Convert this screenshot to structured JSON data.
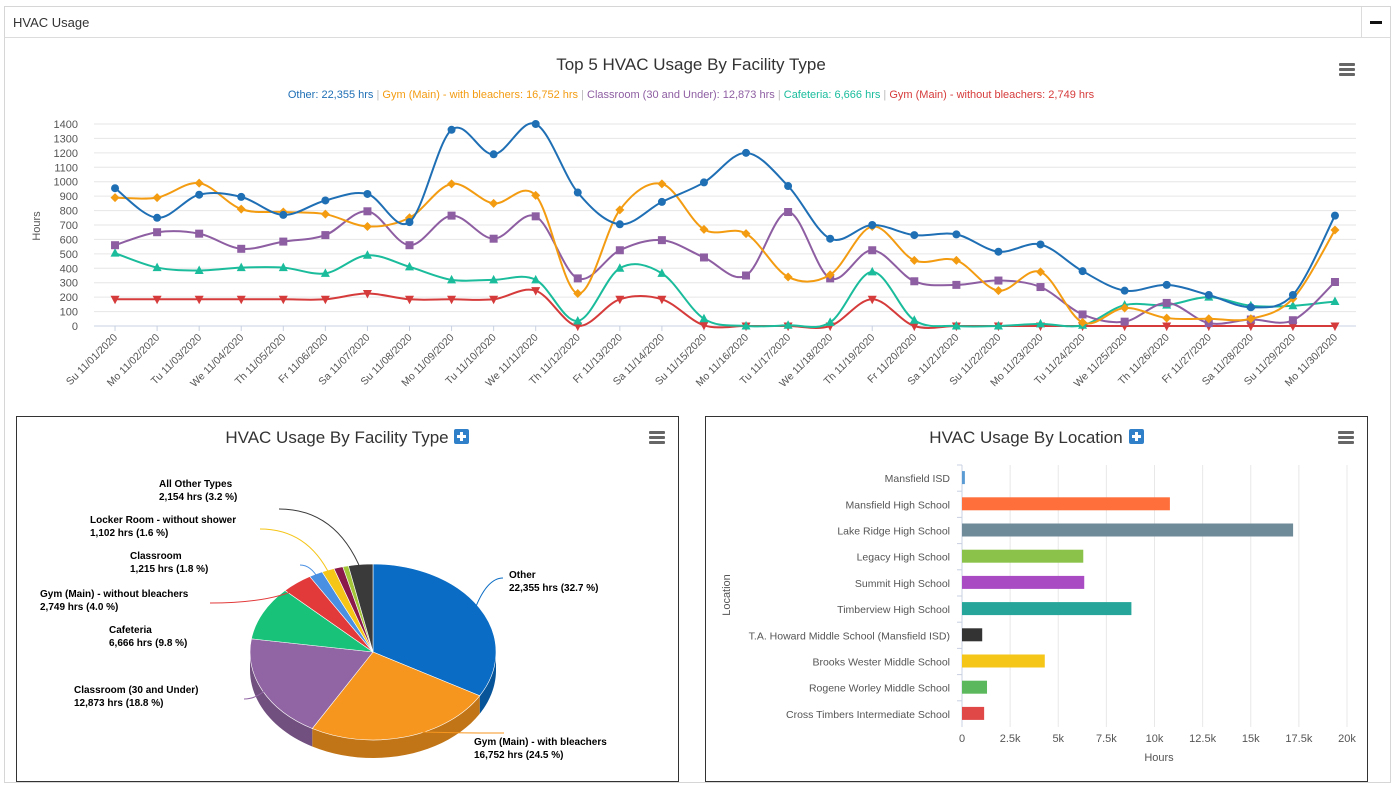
{
  "panel": {
    "title": "HVAC Usage"
  },
  "top_chart": {
    "title": "Top 5 HVAC Usage By Facility Type",
    "ylabel": "Hours",
    "legend": [
      {
        "label": "Other: 22,355 hrs",
        "color": "#1f6fb5"
      },
      {
        "label": "Gym (Main) - with bleachers: 16,752 hrs",
        "color": "#f39c12"
      },
      {
        "label": "Classroom (30 and Under): 12,873 hrs",
        "color": "#8e5ea2"
      },
      {
        "label": "Cafeteria: 6,666 hrs",
        "color": "#1abc9c"
      },
      {
        "label": "Gym (Main) - without bleachers: 2,749 hrs",
        "color": "#d63b3b"
      }
    ]
  },
  "pie_panel": {
    "title": "HVAC Usage By Facility Type"
  },
  "bar_panel": {
    "title": "HVAC Usage By Location"
  },
  "chart_data": [
    {
      "type": "line",
      "title": "Top 5 HVAC Usage By Facility Type",
      "ylabel": "Hours",
      "ylim": [
        0,
        1400
      ],
      "yticks": [
        0,
        100,
        200,
        300,
        400,
        500,
        600,
        700,
        800,
        900,
        1000,
        1100,
        1200,
        1300,
        1400
      ],
      "grid": true,
      "categories": [
        "Su 11/01/2020",
        "Mo 11/02/2020",
        "Tu 11/03/2020",
        "We 11/04/2020",
        "Th 11/05/2020",
        "Fr 11/06/2020",
        "Sa 11/07/2020",
        "Su 11/08/2020",
        "Mo 11/09/2020",
        "Tu 11/10/2020",
        "We 11/11/2020",
        "Th 11/12/2020",
        "Fr 11/13/2020",
        "Sa 11/14/2020",
        "Su 11/15/2020",
        "Mo 11/16/2020",
        "Tu 11/17/2020",
        "We 11/18/2020",
        "Th 11/19/2020",
        "Fr 11/20/2020",
        "Sa 11/21/2020",
        "Su 11/22/2020",
        "Mo 11/23/2020",
        "Tu 11/24/2020",
        "We 11/25/2020",
        "Th 11/26/2020",
        "Fr 11/27/2020",
        "Sa 11/28/2020",
        "Su 11/29/2020",
        "Mo 11/30/2020"
      ],
      "series": [
        {
          "name": "Other",
          "color": "#1f6fb5",
          "marker": "circle",
          "values": [
            955,
            750,
            910,
            895,
            770,
            870,
            915,
            720,
            1360,
            1190,
            1400,
            925,
            705,
            860,
            995,
            1200,
            970,
            605,
            700,
            630,
            635,
            515,
            565,
            380,
            245,
            285,
            215,
            130,
            215,
            765
          ]
        },
        {
          "name": "Gym (Main) - with bleachers",
          "color": "#f39c12",
          "marker": "diamond",
          "values": [
            890,
            890,
            990,
            810,
            790,
            775,
            690,
            750,
            985,
            850,
            905,
            225,
            805,
            985,
            670,
            640,
            340,
            355,
            690,
            455,
            455,
            245,
            375,
            25,
            125,
            55,
            50,
            50,
            190,
            665
          ]
        },
        {
          "name": "Classroom (30 and Under)",
          "color": "#8e5ea2",
          "marker": "square",
          "values": [
            560,
            650,
            640,
            535,
            585,
            630,
            795,
            560,
            765,
            605,
            760,
            330,
            525,
            595,
            475,
            350,
            790,
            330,
            525,
            310,
            285,
            315,
            270,
            80,
            30,
            160,
            20,
            45,
            40,
            305
          ]
        },
        {
          "name": "Cafeteria",
          "color": "#1abc9c",
          "marker": "triangle",
          "values": [
            505,
            405,
            385,
            405,
            405,
            365,
            490,
            410,
            320,
            320,
            320,
            35,
            400,
            365,
            50,
            0,
            5,
            25,
            375,
            40,
            0,
            0,
            15,
            5,
            145,
            145,
            200,
            140,
            140,
            170
          ]
        },
        {
          "name": "Gym (Main) - without bleachers",
          "color": "#d63b3b",
          "marker": "triangle-down",
          "values": [
            185,
            185,
            185,
            185,
            185,
            185,
            225,
            185,
            185,
            185,
            245,
            0,
            185,
            185,
            5,
            0,
            0,
            0,
            185,
            0,
            0,
            0,
            0,
            0,
            0,
            0,
            0,
            0,
            0,
            0
          ]
        }
      ]
    },
    {
      "type": "pie",
      "title": "HVAC Usage By Facility Type",
      "slices": [
        {
          "label": "Other",
          "value_text": "22,355 hrs (32.7 %)",
          "value": 22355,
          "percent": 32.7,
          "color": "#0a6cc4"
        },
        {
          "label": "Gym (Main) - with bleachers",
          "value_text": "16,752 hrs (24.5 %)",
          "value": 16752,
          "percent": 24.5,
          "color": "#f7961e"
        },
        {
          "label": "Classroom (30 and Under)",
          "value_text": "12,873 hrs (18.8 %)",
          "value": 12873,
          "percent": 18.8,
          "color": "#9165a3"
        },
        {
          "label": "Cafeteria",
          "value_text": "6,666 hrs (9.8 %)",
          "value": 6666,
          "percent": 9.8,
          "color": "#18c278"
        },
        {
          "label": "Gym (Main) - without bleachers",
          "value_text": "2,749 hrs (4.0 %)",
          "value": 2749,
          "percent": 4.0,
          "color": "#e23a3a"
        },
        {
          "label": "Classroom",
          "value_text": "1,215 hrs (1.8 %)",
          "value": 1215,
          "percent": 1.8,
          "color": "#4a90e2"
        },
        {
          "label": "Locker Room - without shower",
          "value_text": "1,102 hrs (1.6 %)",
          "value": 1102,
          "percent": 1.6,
          "color": "#f5c518"
        },
        {
          "label": "",
          "value_text": "",
          "value": 800,
          "percent": 1.2,
          "color": "#8b1a4a"
        },
        {
          "label": "",
          "value_text": "",
          "value": 500,
          "percent": 0.7,
          "color": "#a4c639"
        },
        {
          "label": "All Other Types",
          "value_text": "2,154 hrs (3.2 %)",
          "value": 2154,
          "percent": 3.2,
          "color": "#3a3a3a"
        }
      ]
    },
    {
      "type": "bar",
      "orientation": "horizontal",
      "title": "HVAC Usage By Location",
      "xlabel": "Hours",
      "ylabel": "Location",
      "xlim": [
        0,
        20000
      ],
      "xticks": [
        "0",
        "2.5k",
        "5k",
        "7.5k",
        "10k",
        "12.5k",
        "15k",
        "17.5k",
        "20k"
      ],
      "grid": true,
      "categories": [
        "Mansfield ISD",
        "Mansfield High School",
        "Lake Ridge High School",
        "Legacy High School",
        "Summit High School",
        "Timberview High School",
        "T.A. Howard Middle School (Mansfield ISD)",
        "Brooks Wester Middle School",
        "Rogene Worley Middle School",
        "Cross Timbers Intermediate School"
      ],
      "values": [
        150,
        10800,
        17200,
        6300,
        6350,
        8800,
        1050,
        4300,
        1300,
        1150
      ],
      "colors": [
        "#5a9bd4",
        "#ff6f3c",
        "#6f8a99",
        "#8bc34a",
        "#a94cc4",
        "#26a69a",
        "#333333",
        "#f5c518",
        "#5cb85c",
        "#e04848"
      ]
    }
  ]
}
